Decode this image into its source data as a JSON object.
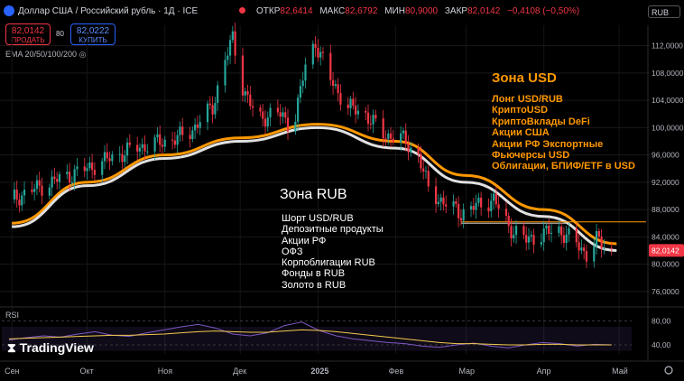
{
  "header": {
    "title": "Доллар США / Российский рубль · 1Д · ICE",
    "ohlc": [
      {
        "key": "ОТКР",
        "value": "82,6414"
      },
      {
        "key": "МАКС",
        "value": "82,6792"
      },
      {
        "key": "МИН",
        "value": "80,9000"
      },
      {
        "key": "ЗАКР",
        "value": "82,0142"
      },
      {
        "key": "",
        "value": "−0,4108 (−0,50%)"
      }
    ],
    "currency": "RUB"
  },
  "trade": {
    "sell_price": "82,0142",
    "sell_label": "ПРОДАТЬ",
    "buy_price": "82,0222",
    "buy_label": "КУПИТЬ",
    "spread": "80"
  },
  "indicators": {
    "ema_label": "EMA 20/50/100/200",
    "rsi_label": "RSI"
  },
  "annotations": {
    "usd_title": "Зона USD",
    "usd_items": [
      "Лонг USD/RUB",
      "КриптоUSD",
      "КриптоВклады DeFi",
      "Акции США",
      "Акции РФ Экспортные",
      "Фьючерсы USD",
      "Облигации, БПИФ/ETF в USD"
    ],
    "rub_title": "Зона RUB",
    "rub_items": [
      "Шорт USD/RUB",
      "Депозитные продукты",
      "Акции РФ",
      "ОФЗ",
      "Корпоблигации RUB",
      "Фонды в RUB",
      "Золото в RUB"
    ]
  },
  "brand": "TradingView",
  "colors": {
    "up": "#26a69a",
    "down": "#f23645",
    "ema_orange": "#ff9800",
    "ema_white": "#e0e0e0",
    "rsi": "#7e57c2",
    "rsi_ma": "#f2c94c",
    "accent": "#2962ff"
  },
  "chart_data": [
    {
      "type": "candlestick",
      "title": "",
      "xlabel": "",
      "ylabel": "",
      "x_ticks": [
        "Сен",
        "Окт",
        "Ноя",
        "Дек",
        "2025",
        "Фев",
        "Мар",
        "Апр",
        "Май"
      ],
      "y_ticks": [
        "76,0000",
        "80,0000",
        "84,0000",
        "88,0000",
        "92,0000",
        "96,0000",
        "100,0000",
        "104,0000",
        "108,0000",
        "112,0000"
      ],
      "ylim": [
        74,
        115
      ],
      "last_price_label": "82,0142",
      "support_level": 86.2,
      "close_path": [
        {
          "x": "2024-09-01",
          "y": 89.5
        },
        {
          "x": "2024-09-10",
          "y": 91.0
        },
        {
          "x": "2024-09-20",
          "y": 92.5
        },
        {
          "x": "2024-10-01",
          "y": 94.0
        },
        {
          "x": "2024-10-10",
          "y": 95.5
        },
        {
          "x": "2024-10-20",
          "y": 97.0
        },
        {
          "x": "2024-11-01",
          "y": 98.0
        },
        {
          "x": "2024-11-10",
          "y": 99.0
        },
        {
          "x": "2024-11-20",
          "y": 103.0
        },
        {
          "x": "2024-11-25",
          "y": 110.0
        },
        {
          "x": "2024-11-28",
          "y": 113.0
        },
        {
          "x": "2024-12-02",
          "y": 106.0
        },
        {
          "x": "2024-12-08",
          "y": 101.0
        },
        {
          "x": "2024-12-15",
          "y": 102.5
        },
        {
          "x": "2024-12-22",
          "y": 100.0
        },
        {
          "x": "2024-12-27",
          "y": 109.0
        },
        {
          "x": "2024-12-31",
          "y": 112.5
        },
        {
          "x": "2025-01-06",
          "y": 107.0
        },
        {
          "x": "2025-01-13",
          "y": 103.0
        },
        {
          "x": "2025-01-20",
          "y": 102.0
        },
        {
          "x": "2025-01-27",
          "y": 99.0
        },
        {
          "x": "2025-02-03",
          "y": 98.5
        },
        {
          "x": "2025-02-10",
          "y": 96.0
        },
        {
          "x": "2025-02-14",
          "y": 91.0
        },
        {
          "x": "2025-02-20",
          "y": 89.0
        },
        {
          "x": "2025-02-27",
          "y": 87.5
        },
        {
          "x": "2025-03-05",
          "y": 88.5
        },
        {
          "x": "2025-03-12",
          "y": 89.5
        },
        {
          "x": "2025-03-18",
          "y": 85.5
        },
        {
          "x": "2025-03-25",
          "y": 83.5
        },
        {
          "x": "2025-04-01",
          "y": 84.5
        },
        {
          "x": "2025-04-07",
          "y": 85.0
        },
        {
          "x": "2025-04-14",
          "y": 83.0
        },
        {
          "x": "2025-04-18",
          "y": 81.5
        },
        {
          "x": "2025-04-22",
          "y": 83.5
        },
        {
          "x": "2025-04-28",
          "y": 82.0
        }
      ],
      "ema_orange": [
        {
          "x": "2024-09-01",
          "y": 86.0
        },
        {
          "x": "2024-10-01",
          "y": 92.0
        },
        {
          "x": "2024-11-01",
          "y": 96.0
        },
        {
          "x": "2024-12-01",
          "y": 98.5
        },
        {
          "x": "2025-01-01",
          "y": 100.5
        },
        {
          "x": "2025-02-01",
          "y": 98.0
        },
        {
          "x": "2025-03-01",
          "y": 93.0
        },
        {
          "x": "2025-04-01",
          "y": 88.0
        },
        {
          "x": "2025-04-30",
          "y": 83.0
        }
      ],
      "ema_white": [
        {
          "x": "2024-09-01",
          "y": 85.5
        },
        {
          "x": "2024-10-01",
          "y": 91.5
        },
        {
          "x": "2024-11-01",
          "y": 95.5
        },
        {
          "x": "2024-12-01",
          "y": 98.0
        },
        {
          "x": "2025-01-01",
          "y": 100.0
        },
        {
          "x": "2025-02-01",
          "y": 97.0
        },
        {
          "x": "2025-03-01",
          "y": 92.0
        },
        {
          "x": "2025-04-01",
          "y": 87.0
        },
        {
          "x": "2025-04-30",
          "y": 82.0
        }
      ]
    },
    {
      "type": "line",
      "title": "RSI",
      "y_ticks": [
        "80,00",
        "40,00"
      ],
      "ylim": [
        25,
        85
      ],
      "series": [
        {
          "values": [
            48,
            52,
            55,
            53,
            58,
            62,
            56,
            54,
            60,
            65,
            70,
            74,
            68,
            58,
            55,
            60,
            72,
            78,
            64,
            55,
            50,
            47,
            44,
            42,
            38,
            36,
            40,
            43,
            38,
            35,
            40,
            44,
            42,
            38,
            41,
            40
          ]
        },
        {
          "values": [
            50,
            51,
            52,
            53,
            54,
            55,
            56,
            56,
            57,
            58,
            60,
            62,
            63,
            62,
            61,
            61,
            63,
            65,
            64,
            62,
            59,
            56,
            53,
            50,
            47,
            44,
            42,
            42,
            41,
            40,
            40,
            41,
            41,
            40,
            40,
            40
          ]
        }
      ]
    }
  ]
}
